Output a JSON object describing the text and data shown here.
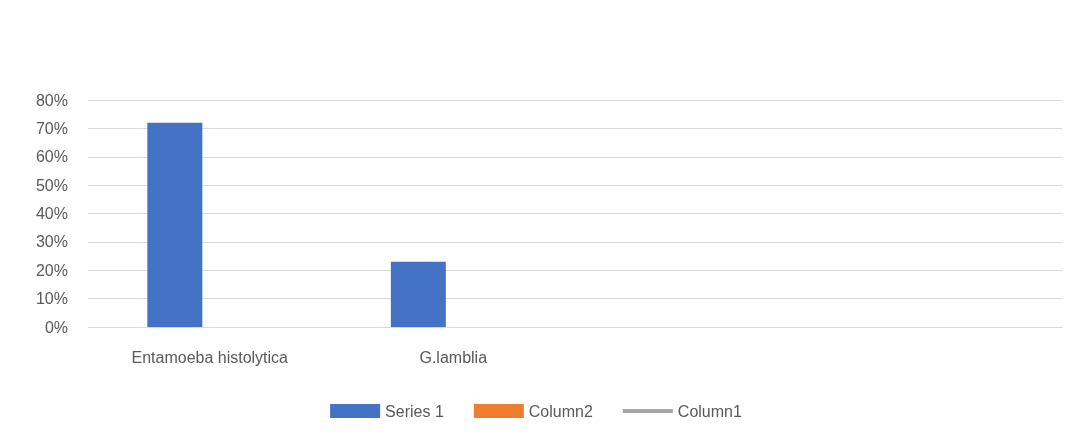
{
  "chart_data": {
    "type": "bar",
    "categories": [
      "Entamoeba histolytica",
      "G.lamblia",
      null,
      null
    ],
    "series": [
      {
        "name": "Series 1",
        "color": "#4472c4",
        "values": [
          72,
          23,
          null,
          null
        ]
      },
      {
        "name": "Column2",
        "type": "bar",
        "color": "#ed7d31",
        "values": [
          null,
          null,
          null,
          null
        ]
      },
      {
        "name": "Column1",
        "type": "line",
        "color": "#a5a5a5",
        "values": [
          null,
          null,
          null,
          null
        ]
      }
    ],
    "ylim": [
      0,
      80
    ],
    "yticks": [
      {
        "value": 0,
        "label": "0%"
      },
      {
        "value": 10,
        "label": "10%"
      },
      {
        "value": 20,
        "label": "20%"
      },
      {
        "value": 30,
        "label": "30%"
      },
      {
        "value": 40,
        "label": "40%"
      },
      {
        "value": 50,
        "label": "50%"
      },
      {
        "value": 60,
        "label": "60%"
      },
      {
        "value": 70,
        "label": "70%"
      },
      {
        "value": 80,
        "label": "80%"
      }
    ],
    "grid": "y",
    "legend": "bottom"
  }
}
